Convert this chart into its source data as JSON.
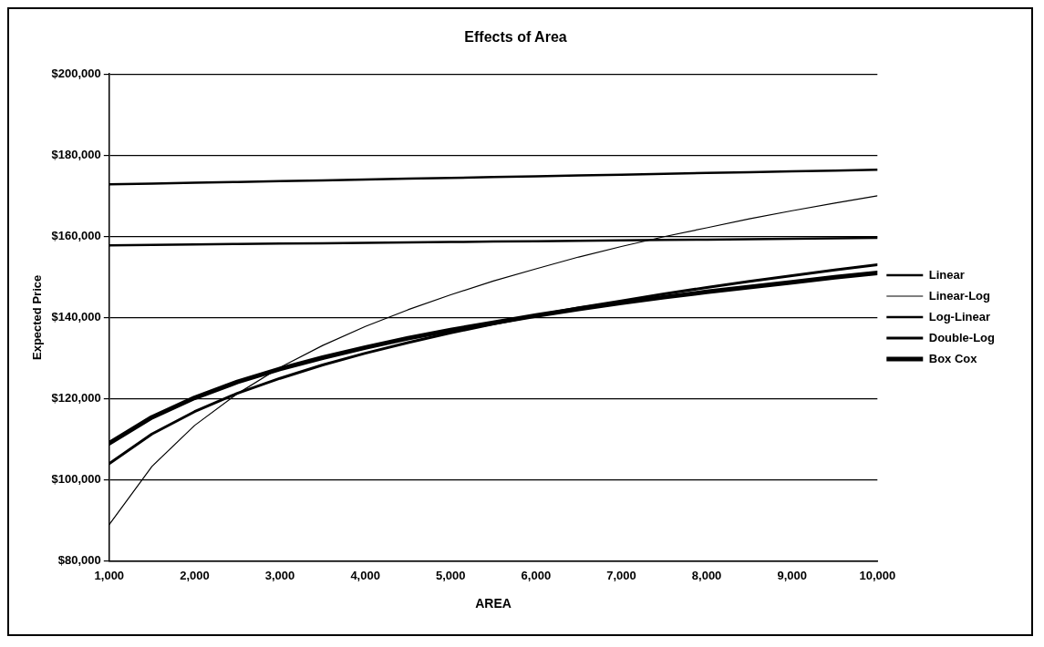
{
  "chart_data": {
    "type": "line",
    "title": "Effects of Area",
    "xlabel": "AREA",
    "ylabel": "Expected Price",
    "x": [
      1000,
      1500,
      2000,
      2500,
      3000,
      3500,
      4000,
      4500,
      5000,
      5500,
      6000,
      6500,
      7000,
      7500,
      8000,
      8500,
      9000,
      9500,
      10000
    ],
    "series": [
      {
        "name": "Linear",
        "color": "#000000",
        "values": [
          172800,
          173000,
          173200,
          173400,
          173600,
          173800,
          174000,
          174200,
          174400,
          174600,
          174800,
          175000,
          175200,
          175400,
          175600,
          175800,
          176000,
          176200,
          176400
        ]
      },
      {
        "name": "Linear-Log",
        "color": "#000000",
        "values": [
          89000,
          103300,
          113400,
          121200,
          127700,
          133100,
          137800,
          141900,
          145600,
          149000,
          152000,
          154900,
          157500,
          159900,
          162100,
          164300,
          166300,
          168200,
          170000
        ]
      },
      {
        "name": "Log-Linear",
        "color": "#000000",
        "values": [
          157800,
          157900,
          158000,
          158100,
          158200,
          158300,
          158400,
          158500,
          158600,
          158700,
          158800,
          158900,
          159000,
          159100,
          159200,
          159300,
          159400,
          159500,
          159600
        ]
      },
      {
        "name": "Double-Log",
        "color": "#000000",
        "values": [
          104000,
          111300,
          116800,
          121300,
          125000,
          128300,
          131200,
          133800,
          136200,
          138400,
          140500,
          142400,
          144100,
          145800,
          147400,
          148900,
          150300,
          151700,
          153000
        ]
      },
      {
        "name": "Box Cox",
        "color": "#000000",
        "values": [
          109000,
          115400,
          120200,
          124100,
          127300,
          130100,
          132600,
          134900,
          136900,
          138700,
          140500,
          142100,
          143600,
          145000,
          146300,
          147500,
          148700,
          149900,
          151000
        ]
      }
    ],
    "xlim": [
      1000,
      10000
    ],
    "xticks": [
      {
        "value": 1000,
        "label": "1,000"
      },
      {
        "value": 2000,
        "label": "2,000"
      },
      {
        "value": 3000,
        "label": "3,000"
      },
      {
        "value": 4000,
        "label": "4,000"
      },
      {
        "value": 5000,
        "label": "5,000"
      },
      {
        "value": 6000,
        "label": "6,000"
      },
      {
        "value": 7000,
        "label": "7,000"
      },
      {
        "value": 8000,
        "label": "8,000"
      },
      {
        "value": 9000,
        "label": "9,000"
      },
      {
        "value": 10000,
        "label": "10,000"
      }
    ],
    "ylim": [
      80000,
      200000
    ],
    "yticks": [
      {
        "value": 80000,
        "label": "$80,000"
      },
      {
        "value": 100000,
        "label": "$100,000"
      },
      {
        "value": 120000,
        "label": "$120,000"
      },
      {
        "value": 140000,
        "label": "$140,000"
      },
      {
        "value": 160000,
        "label": "$160,000"
      },
      {
        "value": 180000,
        "label": "$180,000"
      },
      {
        "value": 200000,
        "label": "$200,000"
      }
    ],
    "grid": "y",
    "legend": "right",
    "marker": "none",
    "line_style": "solid"
  }
}
